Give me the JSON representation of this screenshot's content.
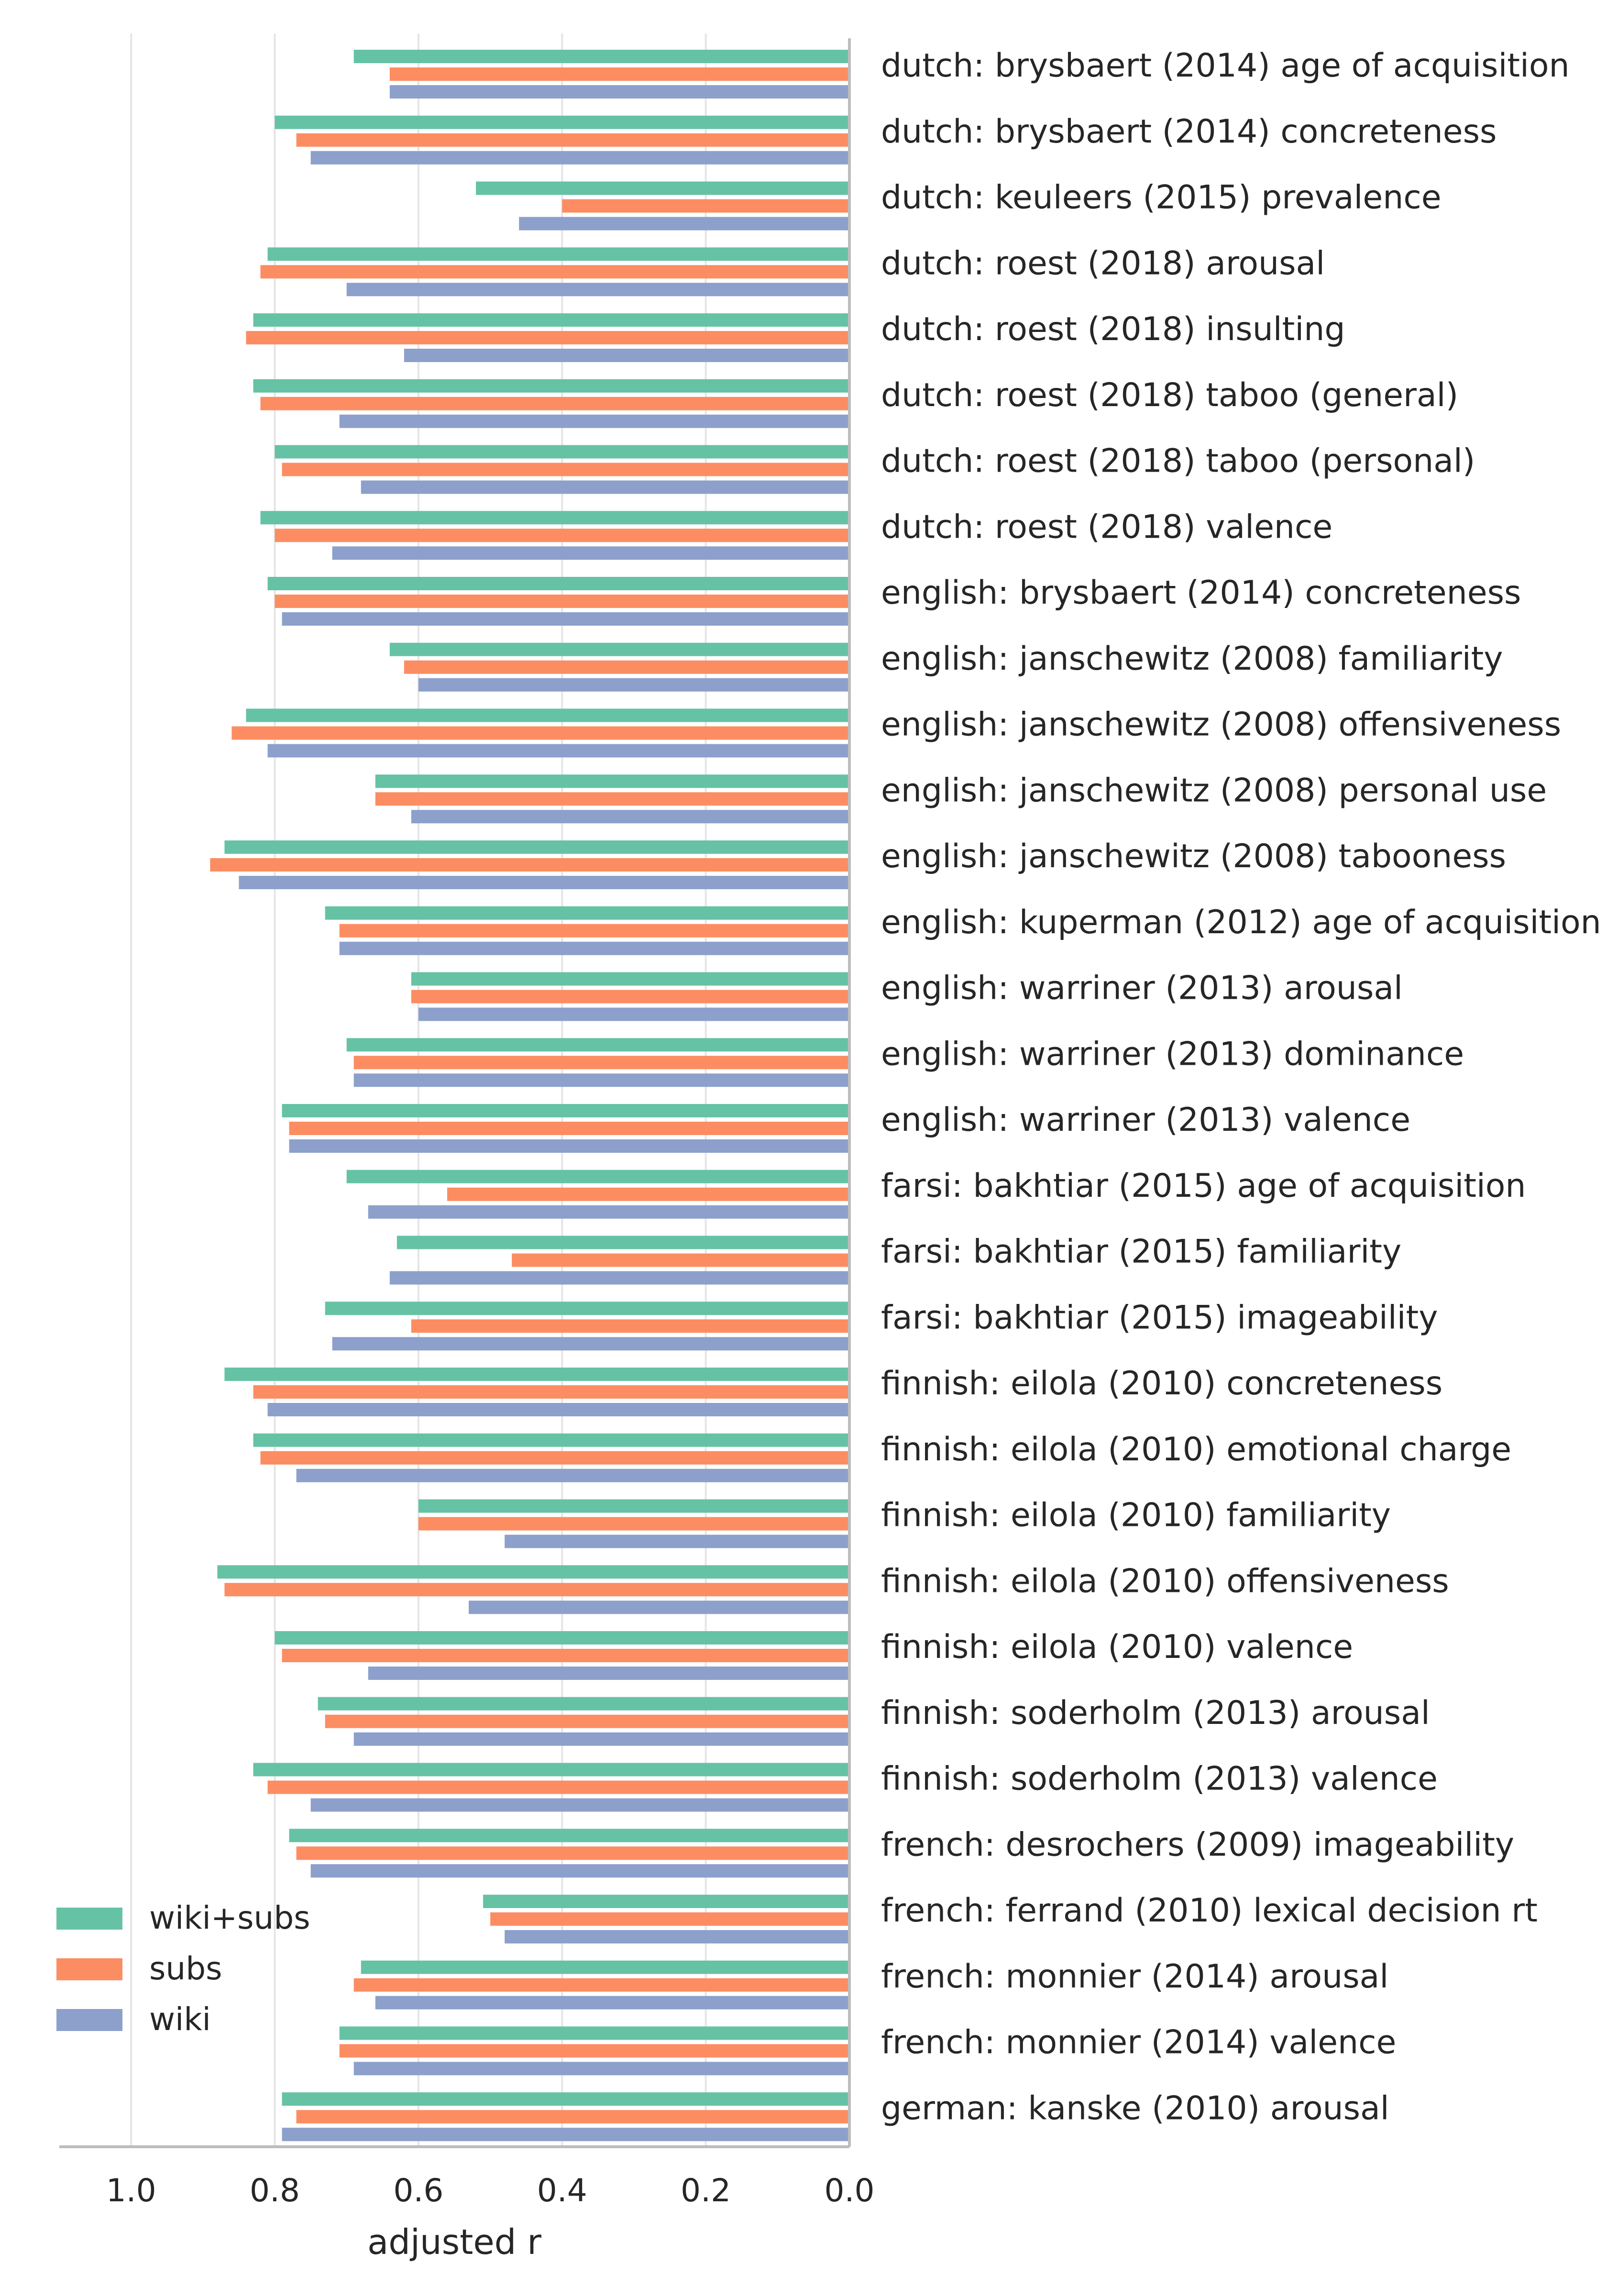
{
  "chart_data": {
    "type": "bar",
    "orientation": "horizontal",
    "x_reversed": true,
    "xlabel": "adjusted r",
    "ylabel": "",
    "title": "",
    "xlim": [
      1.1,
      0.0
    ],
    "xticks": [
      1.0,
      0.8,
      0.6,
      0.4,
      0.2,
      0.0
    ],
    "xtick_labels": [
      "1.0",
      "0.8",
      "0.6",
      "0.4",
      "0.2",
      "0.0"
    ],
    "grid": "vertical",
    "legend_position": "bottom-left",
    "categories": [
      "dutch: brysbaert (2014) age of acquisition",
      "dutch: brysbaert (2014) concreteness",
      "dutch: keuleers (2015) prevalence",
      "dutch: roest (2018) arousal",
      "dutch: roest (2018) insulting",
      "dutch: roest (2018) taboo (general)",
      "dutch: roest (2018) taboo (personal)",
      "dutch: roest (2018) valence",
      "english: brysbaert (2014) concreteness",
      "english: janschewitz (2008) familiarity",
      "english: janschewitz (2008) offensiveness",
      "english: janschewitz (2008) personal use",
      "english: janschewitz (2008) tabooness",
      "english: kuperman (2012) age of acquisition",
      "english: warriner (2013) arousal",
      "english: warriner (2013) dominance",
      "english: warriner (2013) valence",
      "farsi: bakhtiar (2015) age of acquisition",
      "farsi: bakhtiar (2015) familiarity",
      "farsi: bakhtiar (2015) imageability",
      "finnish: eilola (2010) concreteness",
      "finnish: eilola (2010) emotional charge",
      "finnish: eilola (2010) familiarity",
      "finnish: eilola (2010) offensiveness",
      "finnish: eilola (2010) valence",
      "finnish: soderholm (2013) arousal",
      "finnish: soderholm (2013) valence",
      "french: desrochers (2009) imageability",
      "french: ferrand (2010) lexical decision rt",
      "french: monnier (2014) arousal",
      "french: monnier (2014) valence",
      "german: kanske (2010) arousal"
    ],
    "series": [
      {
        "name": "wiki+subs",
        "color": "#66c2a5",
        "values": [
          0.69,
          0.8,
          0.52,
          0.81,
          0.83,
          0.83,
          0.8,
          0.82,
          0.81,
          0.64,
          0.84,
          0.66,
          0.87,
          0.73,
          0.61,
          0.7,
          0.79,
          0.7,
          0.63,
          0.73,
          0.87,
          0.83,
          0.6,
          0.88,
          0.8,
          0.74,
          0.83,
          0.78,
          0.51,
          0.68,
          0.71,
          0.79
        ]
      },
      {
        "name": "subs",
        "color": "#fc8d62",
        "values": [
          0.64,
          0.77,
          0.4,
          0.82,
          0.84,
          0.82,
          0.79,
          0.8,
          0.8,
          0.62,
          0.86,
          0.66,
          0.89,
          0.71,
          0.61,
          0.69,
          0.78,
          0.56,
          0.47,
          0.61,
          0.83,
          0.82,
          0.6,
          0.87,
          0.79,
          0.73,
          0.81,
          0.77,
          0.5,
          0.69,
          0.71,
          0.77
        ]
      },
      {
        "name": "wiki",
        "color": "#8da0cb",
        "values": [
          0.64,
          0.75,
          0.46,
          0.7,
          0.62,
          0.71,
          0.68,
          0.72,
          0.79,
          0.6,
          0.81,
          0.61,
          0.85,
          0.71,
          0.6,
          0.69,
          0.78,
          0.67,
          0.64,
          0.72,
          0.81,
          0.77,
          0.48,
          0.53,
          0.67,
          0.69,
          0.75,
          0.75,
          0.48,
          0.66,
          0.69,
          0.79
        ]
      }
    ]
  }
}
